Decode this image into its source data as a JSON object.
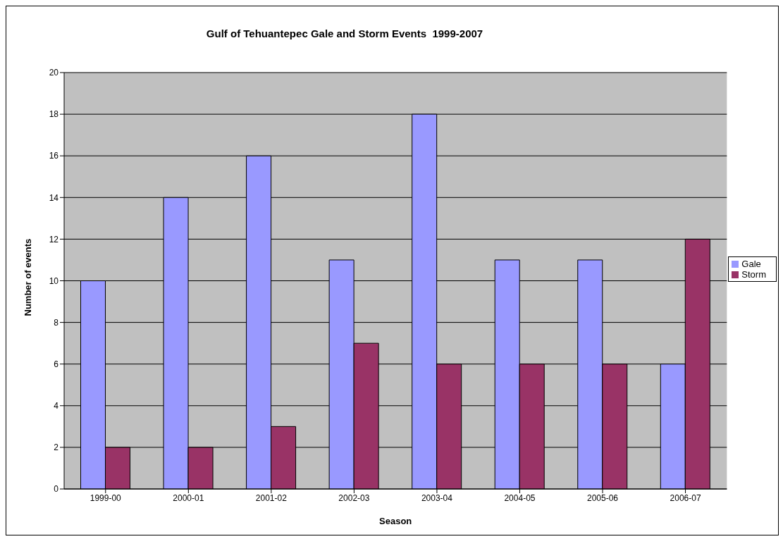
{
  "chart_data": {
    "type": "bar",
    "title": "Gulf of Tehuantepec Gale and Storm Events  1999-2007",
    "xlabel": "Season",
    "ylabel": "Number of events",
    "categories": [
      "1999-00",
      "2000-01",
      "2001-02",
      "2002-03",
      "2003-04",
      "2004-05",
      "2005-06",
      "2006-07"
    ],
    "series": [
      {
        "name": "Gale",
        "color": "#9999ff",
        "values": [
          10,
          14,
          16,
          11,
          18,
          11,
          11,
          6
        ]
      },
      {
        "name": "Storm",
        "color": "#993366",
        "values": [
          2,
          2,
          3,
          7,
          6,
          6,
          6,
          12
        ]
      }
    ],
    "ylim": [
      0,
      20
    ],
    "yticks": [
      0,
      2,
      4,
      6,
      8,
      10,
      12,
      14,
      16,
      18,
      20
    ],
    "grid": "y",
    "legend": "right"
  }
}
